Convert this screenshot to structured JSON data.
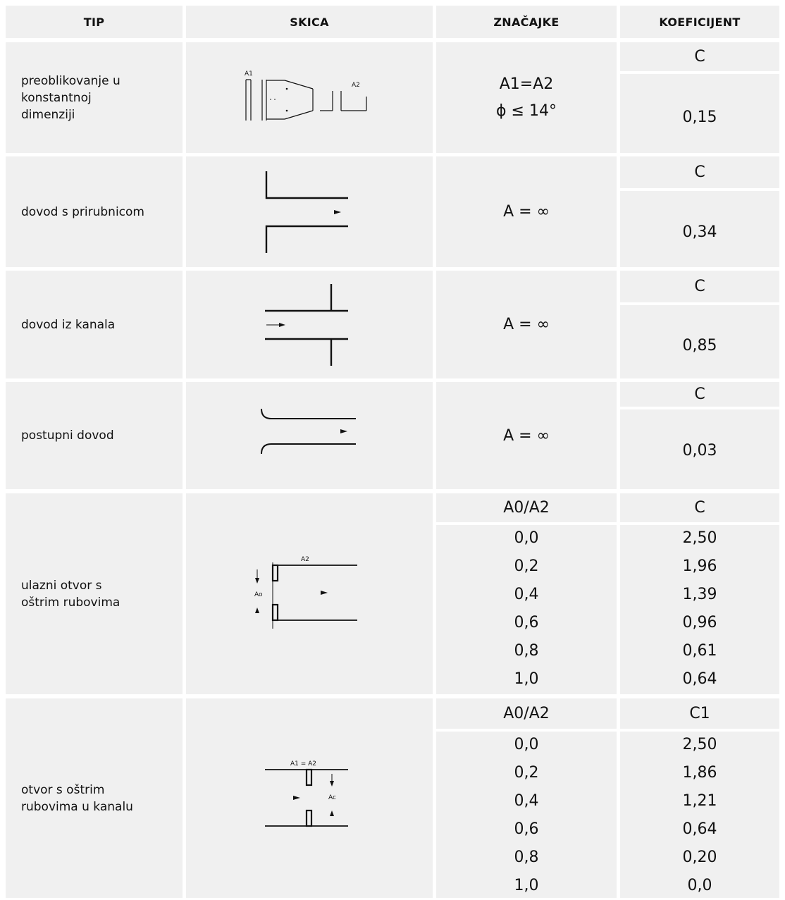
{
  "header": {
    "tip": "TIP",
    "skica": "SKICA",
    "znacajke": "ZNAČAJKE",
    "koeficijent": "KOEFICIJENT"
  },
  "rows": [
    {
      "tip": "preoblikovanje u\nkonstantnoj\ndimenziji",
      "sketch": {
        "label_a1": "A1",
        "label_a2": "A2"
      },
      "feature_1": "A1=A2",
      "feature_2": "ϕ  ≤ 14°",
      "coef_label": "C",
      "coef_value": "0,15"
    },
    {
      "tip": "dovod s prirubnicom",
      "feature": "A = ∞",
      "coef_label": "C",
      "coef_value": "0,34"
    },
    {
      "tip": "dovod iz kanala",
      "feature": "A = ∞",
      "coef_label": "C",
      "coef_value": "0,85"
    },
    {
      "tip": "postupni dovod",
      "feature": "A = ∞",
      "coef_label": "C",
      "coef_value": "0,03"
    },
    {
      "tip": "ulazni otvor s\noštrim rubovima",
      "sketch": {
        "label_a2": "A2",
        "label_ao": "Ao"
      },
      "ratio_header": "A0/A2",
      "coef_header": "C",
      "ratios": [
        "0,0",
        "0,2",
        "0,4",
        "0,6",
        "0,8",
        "1,0"
      ],
      "coefs": [
        "2,50",
        "1,96",
        "1,39",
        "0,96",
        "0,61",
        "0,64"
      ]
    },
    {
      "tip": "otvor s oštrim\nrubovima u kanalu",
      "sketch": {
        "label_a1a2": "A1 = A2",
        "label_ao": "Ac"
      },
      "ratio_header": "A0/A2",
      "coef_header": "C1",
      "ratios": [
        "0,0",
        "0,2",
        "0,4",
        "0,6",
        "0,8",
        "1,0"
      ],
      "coefs": [
        "2,50",
        "1,86",
        "1,21",
        "0,64",
        "0,20",
        "0,0"
      ]
    }
  ]
}
